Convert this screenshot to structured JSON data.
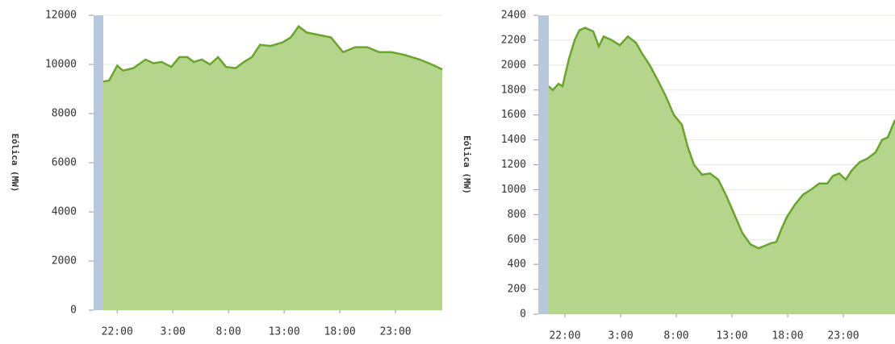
{
  "chart_data": [
    {
      "type": "area",
      "ylabel": "Eólica (MW)",
      "color": "#6aa42f",
      "fill": "#b5d58c",
      "grid": true,
      "xlim": [
        20.75,
        51.2
      ],
      "ylim": [
        0,
        12000
      ],
      "yticks": [
        0,
        2000,
        4000,
        6000,
        8000,
        10000,
        12000
      ],
      "xticks": [
        {
          "value": 22,
          "label": "22:00"
        },
        {
          "value": 27,
          "label": "3:00"
        },
        {
          "value": 32,
          "label": "8:00"
        },
        {
          "value": 37,
          "label": "13:00"
        },
        {
          "value": 42,
          "label": "18:00"
        },
        {
          "value": 47,
          "label": "23:00"
        }
      ],
      "x": [
        20.75,
        21.28,
        22,
        22.51,
        23.45,
        24.54,
        25.26,
        25.99,
        26.86,
        27.58,
        28.3,
        28.88,
        29.61,
        30.33,
        31.06,
        31.78,
        32.65,
        33.38,
        34.1,
        34.83,
        35.77,
        36.86,
        37.59,
        38.3,
        39.03,
        40.12,
        41.2,
        42.29,
        43.38,
        44.46,
        45.55,
        46.64,
        47.72,
        48.45,
        49.17,
        50.26,
        51.2
      ],
      "values": [
        9300,
        9350,
        9950,
        9750,
        9850,
        10200,
        10050,
        10100,
        9900,
        10300,
        10300,
        10100,
        10200,
        10000,
        10300,
        9900,
        9850,
        10100,
        10300,
        10800,
        10750,
        10900,
        11100,
        11550,
        11300,
        11200,
        11100,
        10500,
        10700,
        10700,
        10500,
        10500,
        10400,
        10300,
        10200,
        10000,
        9800
      ]
    },
    {
      "type": "area",
      "ylabel": "Eólica (MW)",
      "color": "#6aa42f",
      "fill": "#b5d58c",
      "grid": true,
      "xlim": [
        20.55,
        51.64
      ],
      "ylim": [
        0,
        2400
      ],
      "yticks": [
        0,
        200,
        400,
        600,
        800,
        1000,
        1200,
        1400,
        1600,
        1800,
        2000,
        2200,
        2400
      ],
      "xticks": [
        {
          "value": 22,
          "label": "22:00"
        },
        {
          "value": 27,
          "label": "3:00"
        },
        {
          "value": 32,
          "label": "8:00"
        },
        {
          "value": 37,
          "label": "13:00"
        },
        {
          "value": 42,
          "label": "18:00"
        },
        {
          "value": 47,
          "label": "23:00"
        }
      ],
      "x": [
        20.55,
        20.91,
        21.42,
        21.78,
        22.36,
        22.87,
        23.3,
        23.81,
        24.54,
        25.04,
        25.48,
        26.2,
        26.93,
        27.65,
        28.38,
        28.88,
        29.61,
        30.33,
        31.06,
        31.78,
        32.51,
        33.01,
        33.59,
        34.32,
        35.04,
        35.77,
        36.49,
        37.22,
        37.94,
        38.67,
        39.39,
        39.97,
        40.48,
        40.99,
        41.42,
        41.93,
        42.65,
        43.38,
        44.1,
        44.83,
        45.55,
        46.06,
        46.64,
        47.22,
        47.72,
        48.45,
        49.17,
        49.9,
        50.48,
        50.99,
        51.64
      ],
      "values": [
        1830,
        1800,
        1850,
        1830,
        2050,
        2200,
        2280,
        2300,
        2270,
        2150,
        2230,
        2200,
        2160,
        2230,
        2180,
        2100,
        2000,
        1880,
        1750,
        1600,
        1520,
        1350,
        1200,
        1120,
        1130,
        1080,
        950,
        800,
        650,
        560,
        530,
        550,
        570,
        580,
        680,
        780,
        880,
        960,
        1000,
        1050,
        1050,
        1110,
        1130,
        1080,
        1150,
        1220,
        1250,
        1300,
        1400,
        1420,
        1560
      ]
    }
  ]
}
